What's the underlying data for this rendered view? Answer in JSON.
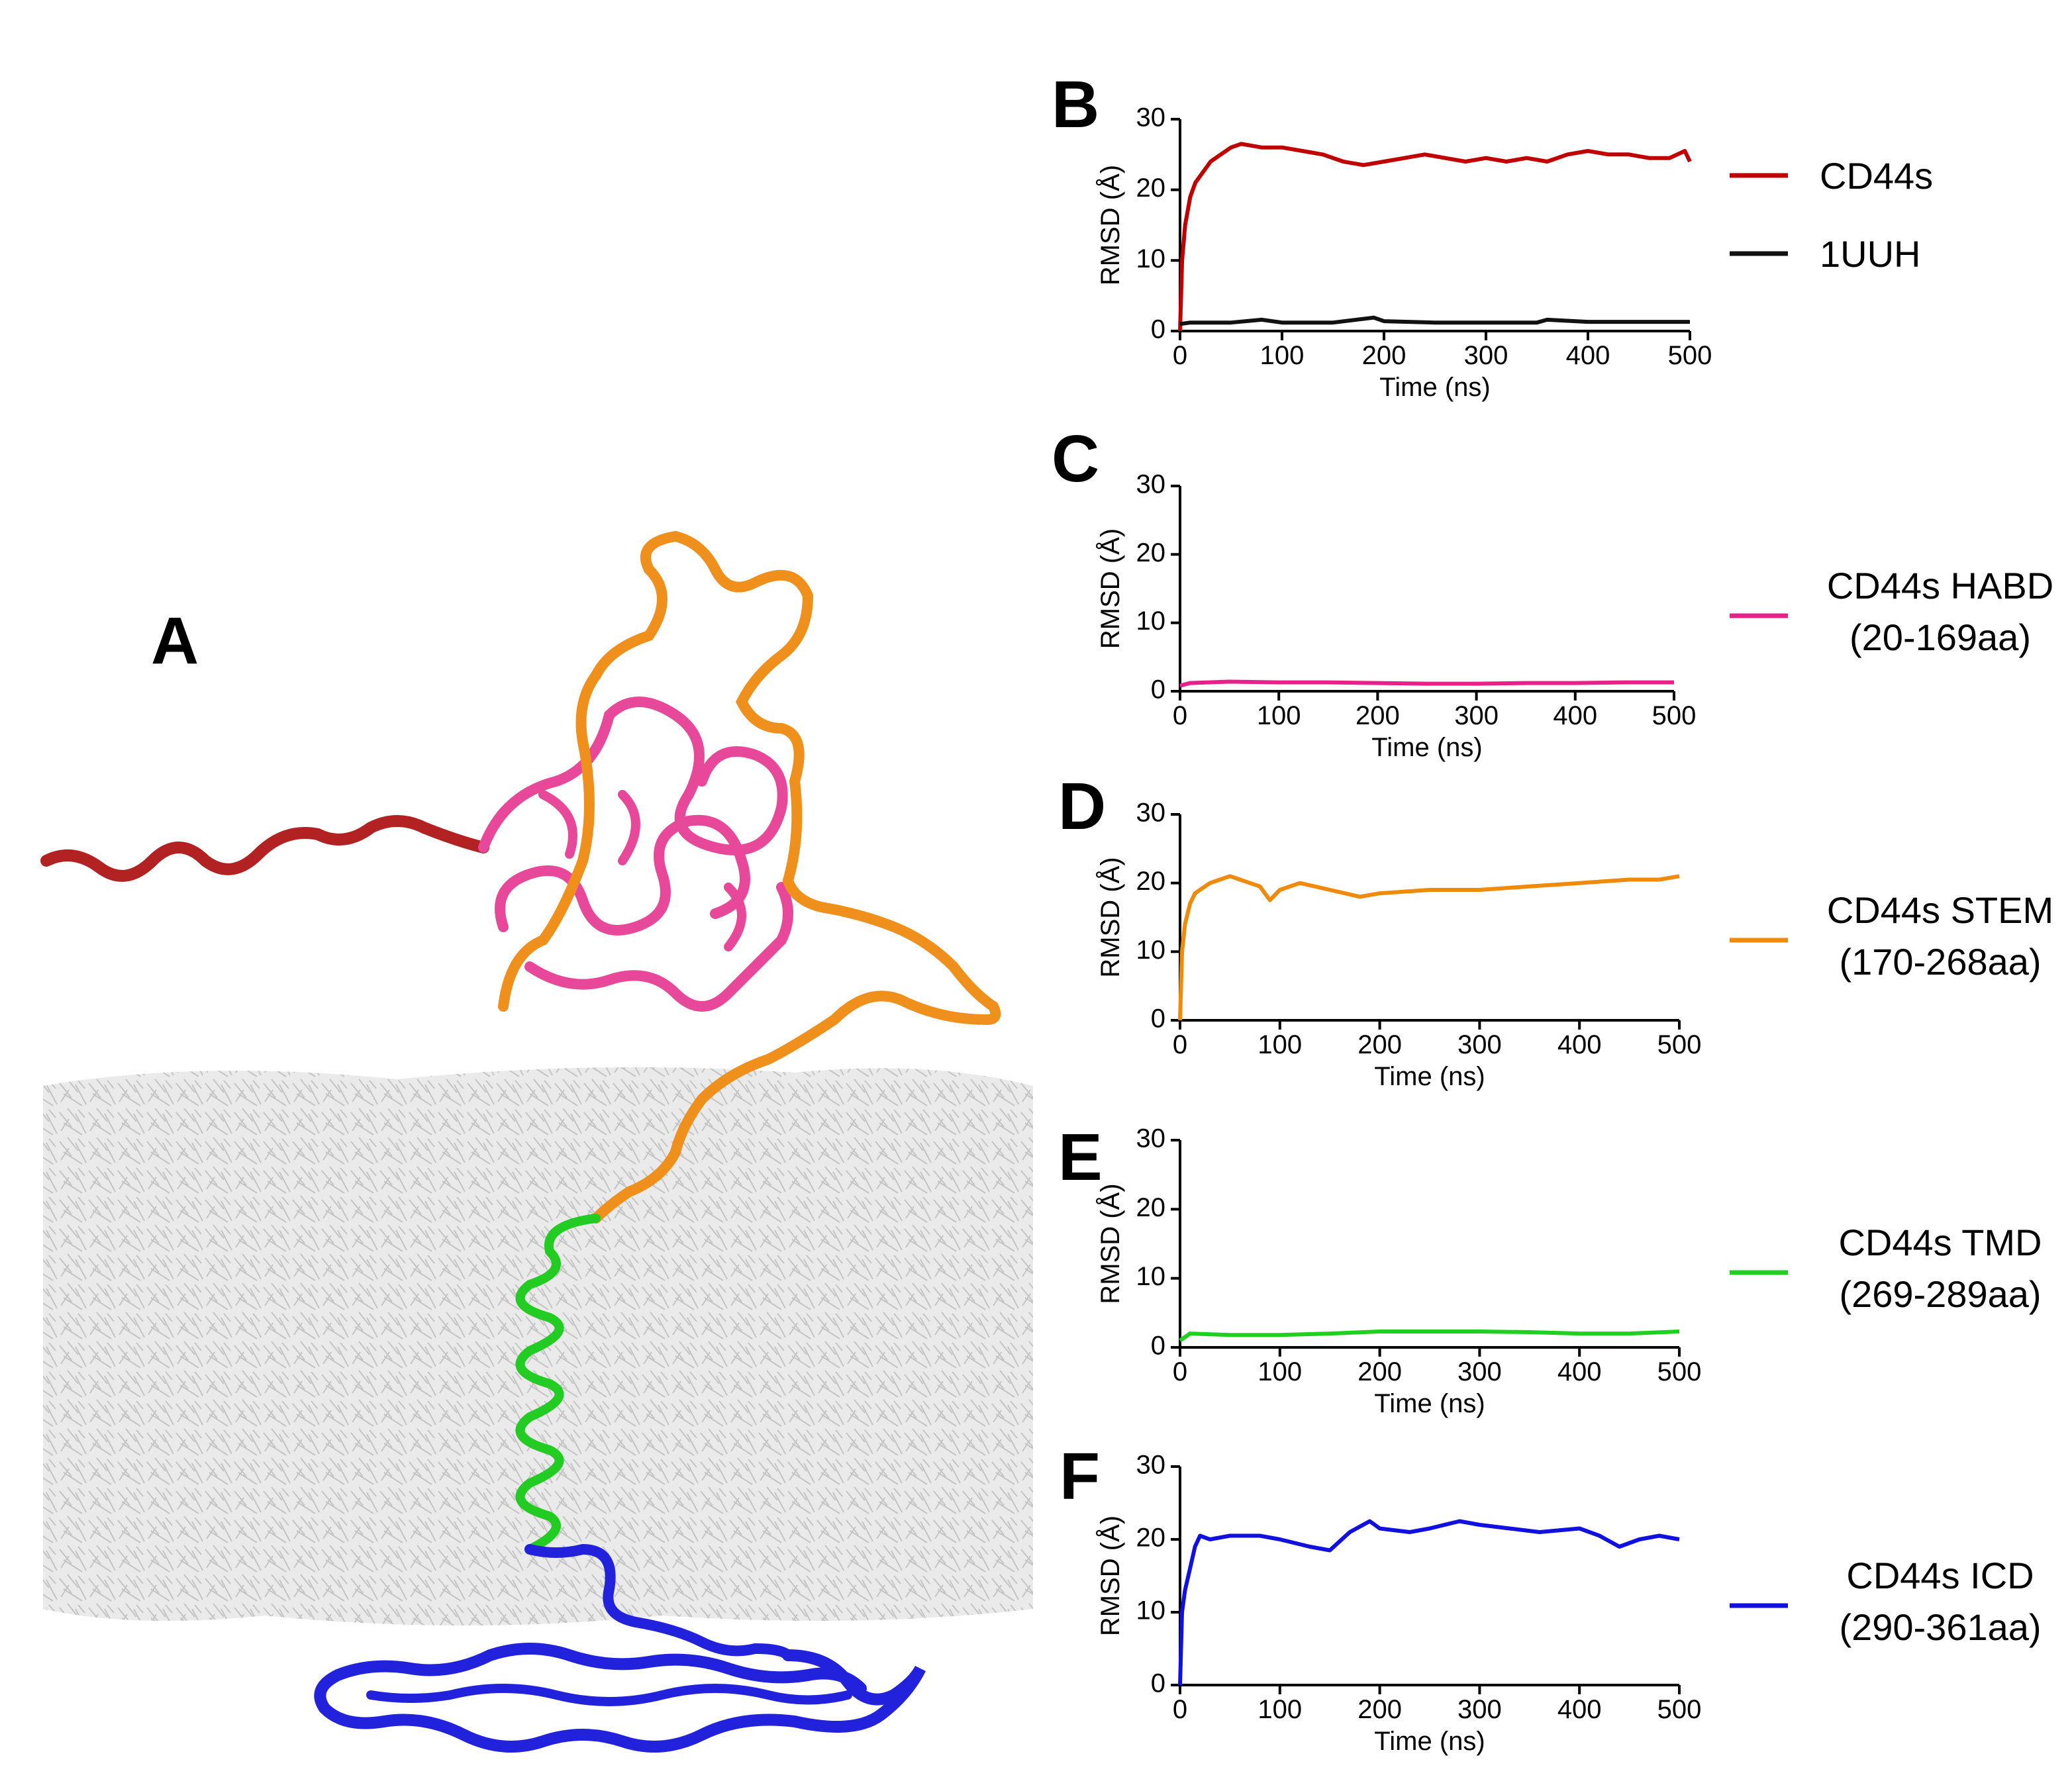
{
  "panel_a": {
    "letter": "A",
    "segment_colors": {
      "n_term": "#b22222",
      "habd": "#e8489a",
      "stem": "#f0901c",
      "tmd": "#22cc22",
      "icd": "#2222dd",
      "membrane": "#c8c8c8"
    }
  },
  "chart_data": [
    {
      "id": "B",
      "letter": "B",
      "type": "line",
      "xlabel": "Time (ns)",
      "ylabel": "RMSD (Å)",
      "xlim": [
        0,
        500
      ],
      "ylim": [
        0,
        30
      ],
      "xticks": [
        0,
        100,
        200,
        300,
        400,
        500
      ],
      "yticks": [
        0,
        10,
        20,
        30
      ],
      "series": [
        {
          "name": "CD44s",
          "color": "#c00000",
          "x": [
            0,
            2,
            5,
            10,
            15,
            20,
            30,
            40,
            50,
            60,
            80,
            100,
            120,
            140,
            160,
            180,
            200,
            220,
            240,
            260,
            280,
            300,
            320,
            340,
            360,
            380,
            400,
            420,
            440,
            460,
            480,
            495,
            500
          ],
          "values": [
            0,
            10,
            15,
            19,
            21,
            22,
            24,
            25,
            26,
            26.5,
            26,
            26,
            25.5,
            25,
            24,
            23.5,
            24,
            24.5,
            25,
            24.5,
            24,
            24.5,
            24,
            24.5,
            24,
            25,
            25.5,
            25,
            25,
            24.5,
            24.5,
            25.5,
            24
          ]
        },
        {
          "name": "1UUH",
          "color": "#111111",
          "x": [
            0,
            10,
            50,
            80,
            100,
            150,
            190,
            200,
            250,
            300,
            350,
            360,
            400,
            450,
            500
          ],
          "values": [
            1,
            1.2,
            1.2,
            1.6,
            1.2,
            1.2,
            1.9,
            1.4,
            1.2,
            1.2,
            1.2,
            1.6,
            1.3,
            1.3,
            1.3
          ]
        }
      ]
    },
    {
      "id": "C",
      "letter": "C",
      "type": "line",
      "xlabel": "Time (ns)",
      "ylabel": "RMSD (Å)",
      "xlim": [
        0,
        500
      ],
      "ylim": [
        0,
        30
      ],
      "xticks": [
        0,
        100,
        200,
        300,
        400,
        500
      ],
      "yticks": [
        0,
        10,
        20,
        30
      ],
      "series": [
        {
          "name": "CD44s HABD",
          "sublabel": "(20-169aa)",
          "color": "#e8208a",
          "x": [
            0,
            10,
            50,
            100,
            150,
            200,
            250,
            300,
            350,
            400,
            450,
            500
          ],
          "values": [
            0.8,
            1.2,
            1.4,
            1.3,
            1.3,
            1.2,
            1.1,
            1.1,
            1.2,
            1.2,
            1.3,
            1.3
          ]
        }
      ]
    },
    {
      "id": "D",
      "letter": "D",
      "type": "line",
      "xlabel": "Time (ns)",
      "ylabel": "RMSD (Å)",
      "xlim": [
        0,
        500
      ],
      "ylim": [
        0,
        30
      ],
      "xticks": [
        0,
        100,
        200,
        300,
        400,
        500
      ],
      "yticks": [
        0,
        10,
        20,
        30
      ],
      "series": [
        {
          "name": "CD44s STEM",
          "sublabel": "(170-268aa)",
          "color": "#f08a0a",
          "x": [
            0,
            2,
            5,
            10,
            15,
            20,
            30,
            40,
            50,
            60,
            70,
            80,
            90,
            100,
            120,
            150,
            180,
            200,
            250,
            300,
            350,
            400,
            450,
            480,
            500
          ],
          "values": [
            0,
            10,
            14,
            17,
            18.5,
            19,
            20,
            20.5,
            21,
            20.5,
            20,
            19.5,
            17.5,
            19,
            20,
            19,
            18,
            18.5,
            19,
            19,
            19.5,
            20,
            20.5,
            20.5,
            21
          ]
        }
      ]
    },
    {
      "id": "E",
      "letter": "E",
      "type": "line",
      "xlabel": "Time (ns)",
      "ylabel": "RMSD (Å)",
      "xlim": [
        0,
        500
      ],
      "ylim": [
        0,
        30
      ],
      "xticks": [
        0,
        100,
        200,
        300,
        400,
        500
      ],
      "yticks": [
        0,
        10,
        20,
        30
      ],
      "series": [
        {
          "name": "CD44s TMD",
          "sublabel": "(269-289aa)",
          "color": "#1fd01f",
          "x": [
            0,
            10,
            50,
            100,
            150,
            200,
            250,
            300,
            350,
            400,
            450,
            500
          ],
          "values": [
            1,
            2,
            1.8,
            1.8,
            2,
            2.3,
            2.3,
            2.3,
            2.2,
            2,
            2,
            2.3
          ]
        }
      ]
    },
    {
      "id": "F",
      "letter": "F",
      "type": "line",
      "xlabel": "Time (ns)",
      "ylabel": "RMSD (Å)",
      "xlim": [
        0,
        500
      ],
      "ylim": [
        0,
        30
      ],
      "xticks": [
        0,
        100,
        200,
        300,
        400,
        500
      ],
      "yticks": [
        0,
        10,
        20,
        30
      ],
      "series": [
        {
          "name": "CD44s ICD",
          "sublabel": "(290-361aa)",
          "color": "#1010e0",
          "x": [
            0,
            2,
            5,
            10,
            15,
            20,
            30,
            50,
            80,
            100,
            130,
            150,
            170,
            190,
            200,
            230,
            250,
            280,
            300,
            330,
            360,
            400,
            420,
            440,
            460,
            480,
            500
          ],
          "values": [
            0,
            10,
            13,
            16,
            19,
            20.5,
            20,
            20.5,
            20.5,
            20,
            19,
            18.5,
            21,
            22.5,
            21.5,
            21,
            21.5,
            22.5,
            22,
            21.5,
            21,
            21.5,
            20.5,
            19,
            20,
            20.5,
            20
          ]
        }
      ]
    }
  ]
}
